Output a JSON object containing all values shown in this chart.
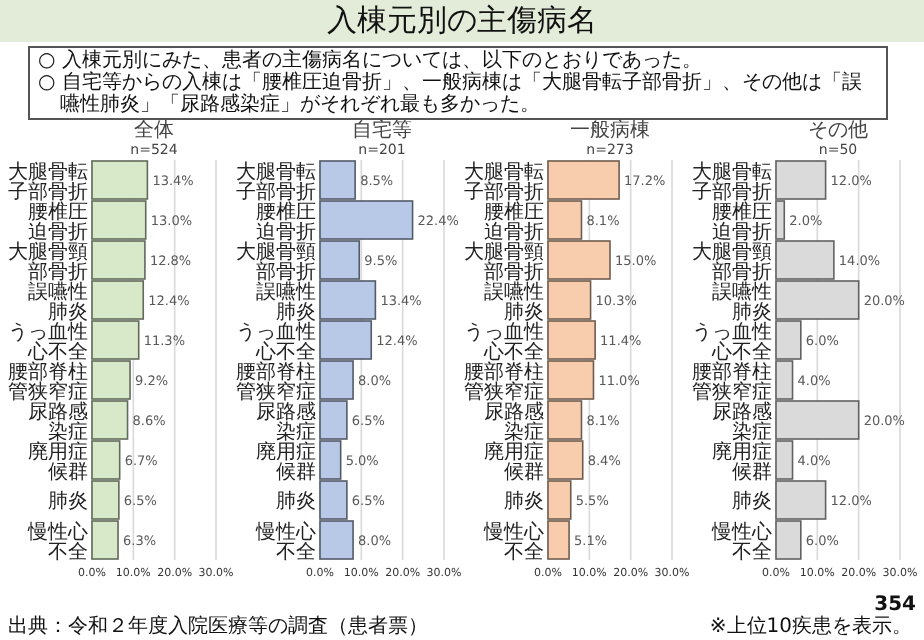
{
  "chart_data": [
    {
      "type": "bar",
      "orientation": "horizontal",
      "title": "全体",
      "subtitle": "n=524",
      "categories": [
        "大腿骨転子部骨折",
        "腰椎圧迫骨折",
        "大腿骨頸部骨折",
        "誤嚥性肺炎",
        "うっ血性心不全",
        "腰部脊柱管狭窄症",
        "尿路感染症",
        "廃用症候群",
        "肺炎",
        "慢性心不全"
      ],
      "series": [
        {
          "color": "#d7e9c8",
          "values": [
            13.4,
            13.0,
            12.8,
            12.4,
            11.3,
            9.2,
            8.6,
            6.7,
            6.5,
            6.3
          ],
          "value_labels": [
            "13.4%",
            "13.0%",
            "12.8%",
            "12.4%",
            "11.3%",
            "9.2%",
            "8.6%",
            "6.7%",
            "6.5%",
            "6.3%"
          ]
        }
      ],
      "xlim": [
        0,
        30
      ],
      "xticks": [
        {
          "value": 0,
          "label": "0.0%"
        },
        {
          "value": 10,
          "label": "10.0%"
        },
        {
          "value": 20,
          "label": "20.0%"
        },
        {
          "value": 30,
          "label": "30.0%"
        }
      ],
      "grid": "x",
      "annotations": [
        "入棟元別の主傷病名",
        "○ 入棟元別にみた、患者の主傷病名については、以下のとおりであった。",
        "○ 自宅等からの入棟は「腰椎圧迫骨折」、一般病棟は「大腿骨転子部骨折」、その他は「誤嚥性肺炎」「尿路感染症」がそれぞれ最も多かった。",
        "出典：令和２年度入院医療等の調査（患者票）"
      ]
    },
    {
      "type": "bar",
      "orientation": "horizontal",
      "title": "自宅等",
      "subtitle": "n=201",
      "categories": [
        "大腿骨転子部骨折",
        "腰椎圧迫骨折",
        "大腿骨頸部骨折",
        "誤嚥性肺炎",
        "うっ血性心不全",
        "腰部脊柱管狭窄症",
        "尿路感染症",
        "廃用症候群",
        "肺炎",
        "慢性心不全"
      ],
      "series": [
        {
          "color": "#b8c9e8",
          "values": [
            8.5,
            22.4,
            9.5,
            13.4,
            12.4,
            8.0,
            6.5,
            5.0,
            6.5,
            8.0
          ],
          "value_labels": [
            "8.5%",
            "22.4%",
            "9.5%",
            "13.4%",
            "12.4%",
            "8.0%",
            "6.5%",
            "5.0%",
            "6.5%",
            "8.0%"
          ]
        }
      ],
      "xlim": [
        0,
        30
      ],
      "xticks": [
        {
          "value": 0,
          "label": "0.0%"
        },
        {
          "value": 10,
          "label": "10.0%"
        },
        {
          "value": 20,
          "label": "20.0%"
        },
        {
          "value": 30,
          "label": "30.0%"
        }
      ],
      "grid": "x"
    },
    {
      "type": "bar",
      "orientation": "horizontal",
      "title": "一般病棟",
      "subtitle": "n=273",
      "categories": [
        "大腿骨転子部骨折",
        "腰椎圧迫骨折",
        "大腿骨頸部骨折",
        "誤嚥性肺炎",
        "うっ血性心不全",
        "腰部脊柱管狭窄症",
        "尿路感染症",
        "廃用症候群",
        "肺炎",
        "慢性心不全"
      ],
      "series": [
        {
          "color": "#f8cdae",
          "values": [
            17.2,
            8.1,
            15.0,
            10.3,
            11.4,
            11.0,
            8.1,
            8.4,
            5.5,
            5.1
          ],
          "value_labels": [
            "17.2%",
            "8.1%",
            "15.0%",
            "10.3%",
            "11.4%",
            "11.0%",
            "8.1%",
            "8.4%",
            "5.5%",
            "5.1%"
          ]
        }
      ],
      "xlim": [
        0,
        30
      ],
      "xticks": [
        {
          "value": 0,
          "label": "0.0%"
        },
        {
          "value": 10,
          "label": "10.0%"
        },
        {
          "value": 20,
          "label": "20.0%"
        },
        {
          "value": 30,
          "label": "30.0%"
        }
      ],
      "grid": "x"
    },
    {
      "type": "bar",
      "orientation": "horizontal",
      "title": "その他",
      "subtitle": "n=50",
      "categories": [
        "大腿骨転子部骨折",
        "腰椎圧迫骨折",
        "大腿骨頸部骨折",
        "誤嚥性肺炎",
        "うっ血性心不全",
        "腰部脊柱管狭窄症",
        "尿路感染症",
        "廃用症候群",
        "肺炎",
        "慢性心不全"
      ],
      "series": [
        {
          "color": "#dadada",
          "values": [
            12.0,
            2.0,
            14.0,
            20.0,
            6.0,
            4.0,
            20.0,
            4.0,
            12.0,
            6.0
          ],
          "value_labels": [
            "12.0%",
            "2.0%",
            "14.0%",
            "20.0%",
            "6.0%",
            "4.0%",
            "20.0%",
            "4.0%",
            "12.0%",
            "6.0%"
          ]
        }
      ],
      "xlim": [
        0,
        30
      ],
      "xticks": [
        {
          "value": 0,
          "label": "0.0%"
        },
        {
          "value": 10,
          "label": "10.0%"
        },
        {
          "value": 20,
          "label": "20.0%"
        },
        {
          "value": 30,
          "label": "30.0%"
        }
      ],
      "grid": "x",
      "annotations": [
        "※上位10疾患を表示。",
        "354"
      ]
    }
  ]
}
